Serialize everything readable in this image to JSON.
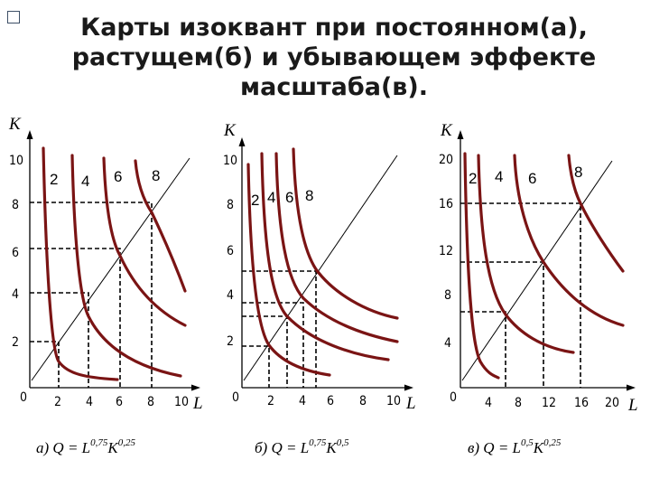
{
  "title": {
    "line1": "Карты изоквант при постоянном(а),",
    "line2": "растущем(б) и убывающем эффекте",
    "line3": "масштаба(в)."
  },
  "panels": [
    {
      "id": "a",
      "y_axis_label": "K",
      "x_axis_label": "L",
      "origin_label": "0",
      "x_ticks": [
        "2",
        "4",
        "6",
        "8",
        "10"
      ],
      "y_ticks": [
        "2",
        "4",
        "6",
        "8",
        "10"
      ],
      "curve_labels": [
        "2",
        "4",
        "6",
        "8"
      ],
      "formula": {
        "prefix": "а) Q = L",
        "exp1": "0,75",
        "mid": "K",
        "exp2": "0,25"
      }
    },
    {
      "id": "b",
      "y_axis_label": "K",
      "x_axis_label": "L",
      "origin_label": "0",
      "x_ticks": [
        "2",
        "4",
        "6",
        "8",
        "10"
      ],
      "y_ticks": [
        "2",
        "4",
        "6",
        "8",
        "10"
      ],
      "curve_labels": [
        "2",
        "4",
        "6",
        "8"
      ],
      "formula": {
        "prefix": "б) Q = L",
        "exp1": "0,75",
        "mid": "K",
        "exp2": "0,5"
      }
    },
    {
      "id": "c",
      "y_axis_label": "K",
      "x_axis_label": "L",
      "origin_label": "0",
      "x_ticks": [
        "4",
        "8",
        "12",
        "16",
        "20"
      ],
      "y_ticks": [
        "4",
        "8",
        "12",
        "16",
        "20"
      ],
      "curve_labels": [
        "2",
        "4",
        "6",
        "8"
      ],
      "formula": {
        "prefix": "в) Q = L",
        "exp1": "0,5",
        "mid": "K",
        "exp2": "0,25"
      }
    }
  ]
}
